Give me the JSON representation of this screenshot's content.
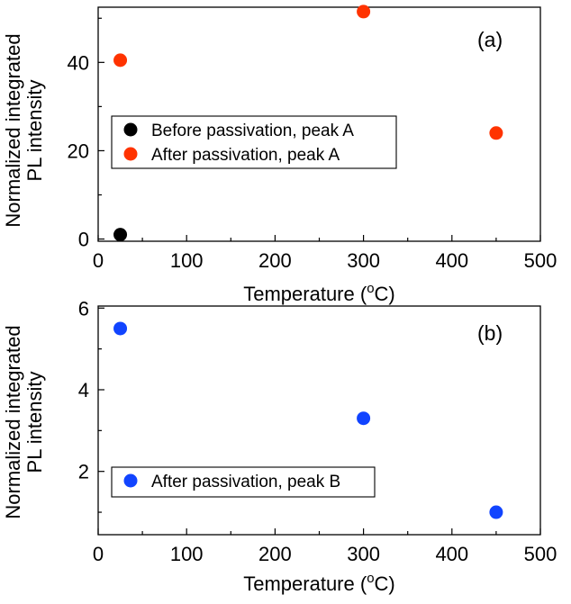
{
  "chart_data": [
    {
      "type": "scatter",
      "panel": "(a)",
      "xlabel": "Temperature (°C)",
      "xlabel_parts": {
        "base": "Temperature (",
        "sup": "o",
        "unit": "C)"
      },
      "ylabel_lines": [
        "Normalized integrated",
        "PL intensity"
      ],
      "xlim": [
        0,
        500
      ],
      "ylim": [
        -0.5,
        52.5
      ],
      "xticks": [
        0,
        100,
        200,
        300,
        400,
        500
      ],
      "yticks": [
        0,
        20,
        40
      ],
      "grid": false,
      "legend_position": "center-left",
      "series": [
        {
          "name": "Before passivation, peak A",
          "color": "#000000",
          "x": [
            25
          ],
          "y": [
            1
          ]
        },
        {
          "name": "After passivation, peak A",
          "color": "#ff3300",
          "x": [
            25,
            300,
            450
          ],
          "y": [
            40.5,
            51.5,
            24
          ]
        }
      ]
    },
    {
      "type": "scatter",
      "panel": "(b)",
      "xlabel": "Temperature (°C)",
      "xlabel_parts": {
        "base": "Temperature (",
        "sup": "o",
        "unit": "C)"
      },
      "ylabel_lines": [
        "Normalized integrated",
        "PL intensity"
      ],
      "xlim": [
        0,
        500
      ],
      "ylim": [
        0.45,
        6.05
      ],
      "xticks": [
        0,
        100,
        200,
        300,
        400,
        500
      ],
      "yticks": [
        2,
        4,
        6
      ],
      "grid": false,
      "legend_position": "bottom-left",
      "series": [
        {
          "name": "After passivation, peak B",
          "color": "#1144ff",
          "x": [
            25,
            300,
            450
          ],
          "y": [
            5.5,
            3.3,
            1.0
          ]
        }
      ]
    }
  ]
}
